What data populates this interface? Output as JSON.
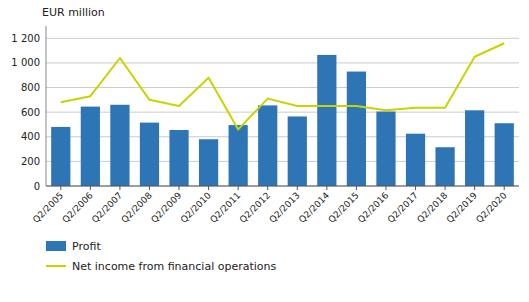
{
  "chart_data": {
    "type": "bar",
    "y_label": "EUR million",
    "categories": [
      "Q2/2005",
      "Q2/2006",
      "Q2/2007",
      "Q2/2008",
      "Q2/2009",
      "Q2/2010",
      "Q2/2011",
      "Q2/2012",
      "Q2/2013",
      "Q2/2014",
      "Q2/2015",
      "Q2/2016",
      "Q2/2017",
      "Q2/2018",
      "Q2/2019",
      "Q2/2020"
    ],
    "series": [
      {
        "name": "Profit",
        "type": "bar",
        "color": "#2e75b6",
        "values": [
          480,
          645,
          660,
          515,
          455,
          380,
          495,
          655,
          565,
          1065,
          930,
          605,
          425,
          315,
          615,
          510
        ]
      },
      {
        "name": "Net income from financial operations",
        "type": "line",
        "color": "#c8d400",
        "values": [
          680,
          730,
          1040,
          700,
          650,
          880,
          460,
          710,
          650,
          650,
          650,
          615,
          635,
          635,
          1050,
          1160
        ]
      }
    ],
    "ylim": [
      0,
      1300
    ],
    "yticks": [
      0,
      200,
      400,
      600,
      800,
      {
        "value": 1000,
        "label": "1 000"
      },
      {
        "value": 1200,
        "label": "1 200"
      }
    ],
    "grid": true,
    "legend": "bottom"
  }
}
